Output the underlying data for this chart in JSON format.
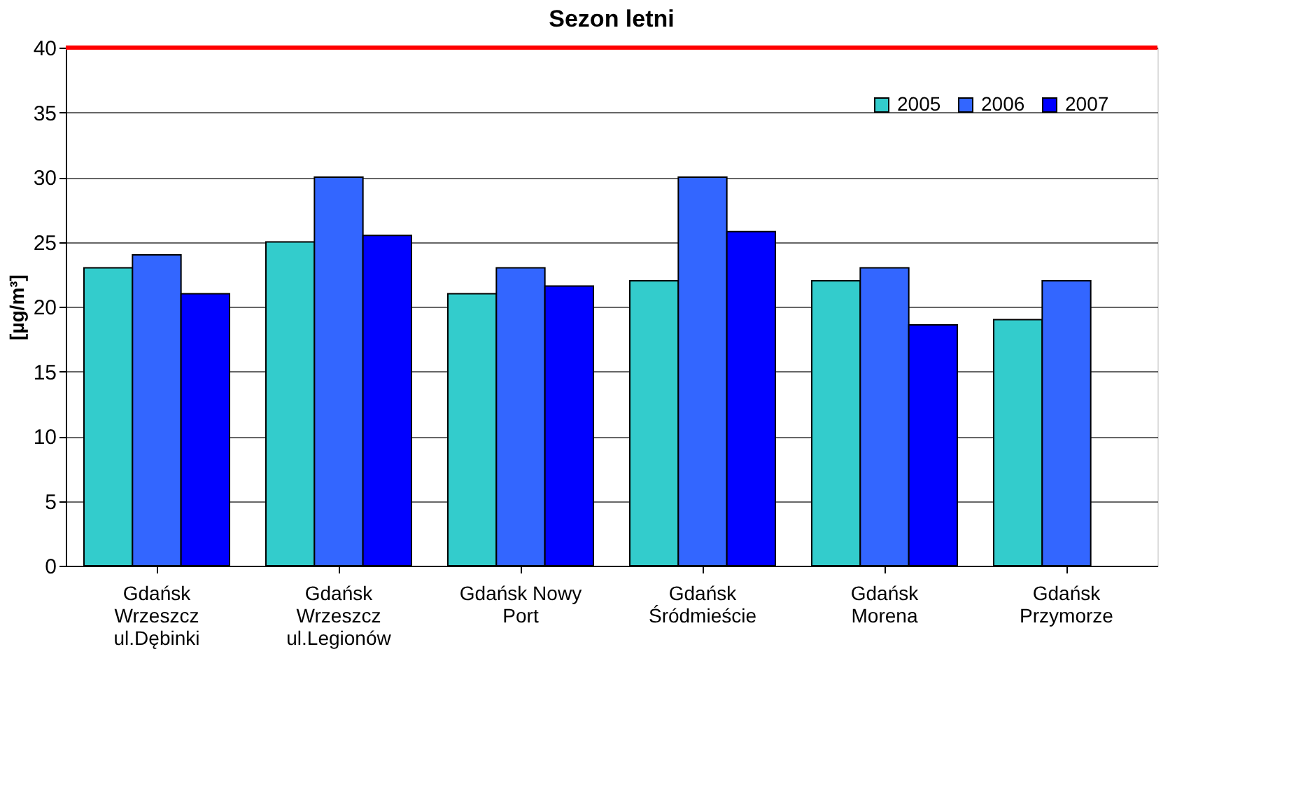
{
  "chart_data": {
    "type": "bar",
    "title": "Sezon letni",
    "ylabel": "[µg/m³]",
    "categories": [
      "Gdańsk\nWrzeszcz\nul.Dębinki",
      "Gdańsk\nWrzeszcz\nul.Legionów",
      "Gdańsk Nowy\nPort",
      "Gdańsk\nŚródmieście",
      "Gdańsk\nMorena",
      "Gdańsk\nPrzymorze"
    ],
    "series": [
      {
        "name": "2005",
        "color": "#33cccc",
        "values": [
          23,
          25,
          21,
          22,
          22,
          19
        ]
      },
      {
        "name": "2006",
        "color": "#3366ff",
        "values": [
          24,
          30,
          23,
          30,
          23,
          22
        ]
      },
      {
        "name": "2007",
        "color": "#0000ff",
        "values": [
          21,
          25.5,
          21.6,
          25.8,
          18.6,
          null
        ]
      }
    ],
    "ylim": [
      0,
      40
    ],
    "yticks": [
      0,
      5,
      10,
      15,
      20,
      25,
      30,
      35,
      40
    ],
    "grid": "y",
    "legend": "top right",
    "ref_lines": [
      {
        "axis": "y",
        "value": 40,
        "color": "#ff0000"
      }
    ]
  }
}
